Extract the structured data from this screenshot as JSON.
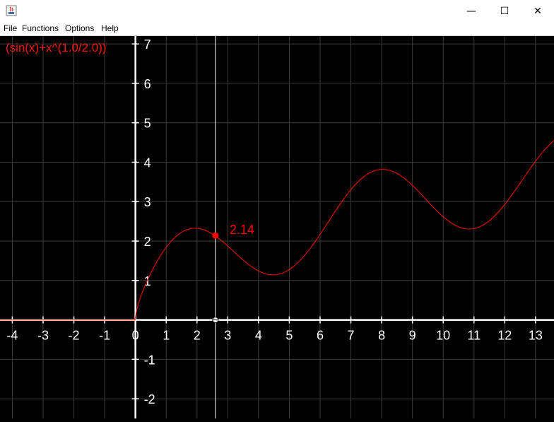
{
  "window": {
    "minimize_glyph": "—",
    "maximize_glyph": "☐",
    "close_glyph": "✕"
  },
  "menu": {
    "items": [
      "File",
      "Functions",
      "Options",
      "Help"
    ]
  },
  "colors": {
    "background": "#000000",
    "grid": "#3c3c3c",
    "axis": "#ffffff",
    "curve": "#ff0000"
  },
  "chart_data": {
    "type": "line",
    "title": "",
    "function_label": "(sin(x)+x^(1.0/2.0))",
    "xlim": [
      -4.4,
      13.6
    ],
    "ylim": [
      -2.5,
      7.2
    ],
    "x_ticks": [
      "-4",
      "-3",
      "-2",
      "-1",
      "0",
      "1",
      "2",
      "3",
      "4",
      "5",
      "6",
      "7",
      "8",
      "9",
      "10",
      "11",
      "12",
      "13"
    ],
    "y_ticks": [
      "-2",
      "-1",
      "0",
      "1",
      "2",
      "3",
      "4",
      "5",
      "6",
      "7"
    ],
    "grid": true,
    "cursor": {
      "x": 2.6,
      "y": 2.14,
      "label": "2.14"
    },
    "series": [
      {
        "expression": "sin(x)+sqrt(x)",
        "domain": [
          0,
          13.6
        ],
        "zero_for_negative_x": true
      }
    ]
  }
}
